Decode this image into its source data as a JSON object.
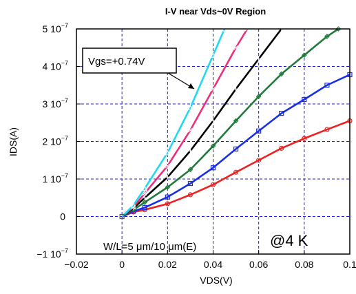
{
  "chart_data": {
    "type": "line",
    "title": "I-V near Vds~0V Region",
    "xlabel": "VDS(V)",
    "ylabel": "IDS(A)",
    "xlim": [
      -0.02,
      0.1
    ],
    "ylim": [
      -1e-07,
      5e-07
    ],
    "x_ticks": [
      "-0.02",
      "0",
      "0.02",
      "0.04",
      "0.06",
      "0.08",
      "0.1"
    ],
    "y_ticks": [
      {
        "mant": "-1 10",
        "exp": "-7",
        "value": -1e-07
      },
      {
        "mant": "0",
        "exp": "",
        "value": 0
      },
      {
        "mant": "1 10",
        "exp": "-7",
        "value": 1e-07
      },
      {
        "mant": "2 10",
        "exp": "-7",
        "value": 2e-07
      },
      {
        "mant": "3 10",
        "exp": "-7",
        "value": 3e-07
      },
      {
        "mant": "4 10",
        "exp": "-7",
        "value": 4e-07
      },
      {
        "mant": "5 10",
        "exp": "-7",
        "value": 5e-07
      }
    ],
    "grid": true,
    "grid_style": "dashed",
    "annotations": {
      "vgs_label": "Vgs=+0.74V",
      "geometry_label": "W/L=5 μm/10 μm(E)",
      "temperature_label": "@4 K"
    },
    "series": [
      {
        "color": "#ee2222",
        "marker": "circle",
        "x": [
          0,
          0.005,
          0.01,
          0.02,
          0.03,
          0.04,
          0.05,
          0.06,
          0.07,
          0.08,
          0.09,
          0.1
        ],
        "y": [
          0,
          1.2e-08,
          1.8e-08,
          3.4e-08,
          5.8e-08,
          8.5e-08,
          1.18e-07,
          1.5e-07,
          1.82e-07,
          2.08e-07,
          2.32e-07,
          2.55e-07
        ]
      },
      {
        "color": "#1a2ee6",
        "marker": "square",
        "x": [
          0,
          0.005,
          0.01,
          0.02,
          0.03,
          0.04,
          0.05,
          0.06,
          0.07,
          0.08,
          0.09,
          0.1
        ],
        "y": [
          0,
          1.4e-08,
          2.4e-08,
          5.2e-08,
          8.8e-08,
          1.3e-07,
          1.8e-07,
          2.28e-07,
          2.75e-07,
          3.12e-07,
          3.5e-07,
          3.78e-07
        ]
      },
      {
        "color": "#1f7a3a",
        "marker": "diamond",
        "x": [
          0,
          0.005,
          0.01,
          0.02,
          0.03,
          0.04,
          0.05,
          0.06,
          0.07,
          0.08,
          0.09,
          0.095
        ],
        "y": [
          0,
          1.8e-08,
          3.8e-08,
          7.8e-08,
          1.25e-07,
          1.88e-07,
          2.55e-07,
          3.2e-07,
          3.8e-07,
          4.3e-07,
          4.8e-07,
          5e-07
        ]
      },
      {
        "color": "#000000",
        "marker": "plus",
        "x": [
          0,
          0.005,
          0.01,
          0.02,
          0.03,
          0.04,
          0.05,
          0.06,
          0.07
        ],
        "y": [
          0,
          2.2e-08,
          5e-08,
          1.05e-07,
          1.75e-07,
          2.55e-07,
          3.4e-07,
          4.2e-07,
          5e-07
        ]
      },
      {
        "color": "#ee2e7a",
        "marker": "x",
        "x": [
          0,
          0.005,
          0.01,
          0.02,
          0.03,
          0.04,
          0.05,
          0.055
        ],
        "y": [
          0,
          2.5e-08,
          6.2e-08,
          1.35e-07,
          2.3e-07,
          3.4e-07,
          4.5e-07,
          5e-07
        ]
      },
      {
        "color": "#22d8ee",
        "marker": "triangle",
        "x": [
          0,
          0.005,
          0.01,
          0.02,
          0.03,
          0.04,
          0.045
        ],
        "y": [
          0,
          3e-08,
          7.5e-08,
          1.7e-07,
          2.9e-07,
          4.3e-07,
          5e-07
        ]
      }
    ]
  }
}
